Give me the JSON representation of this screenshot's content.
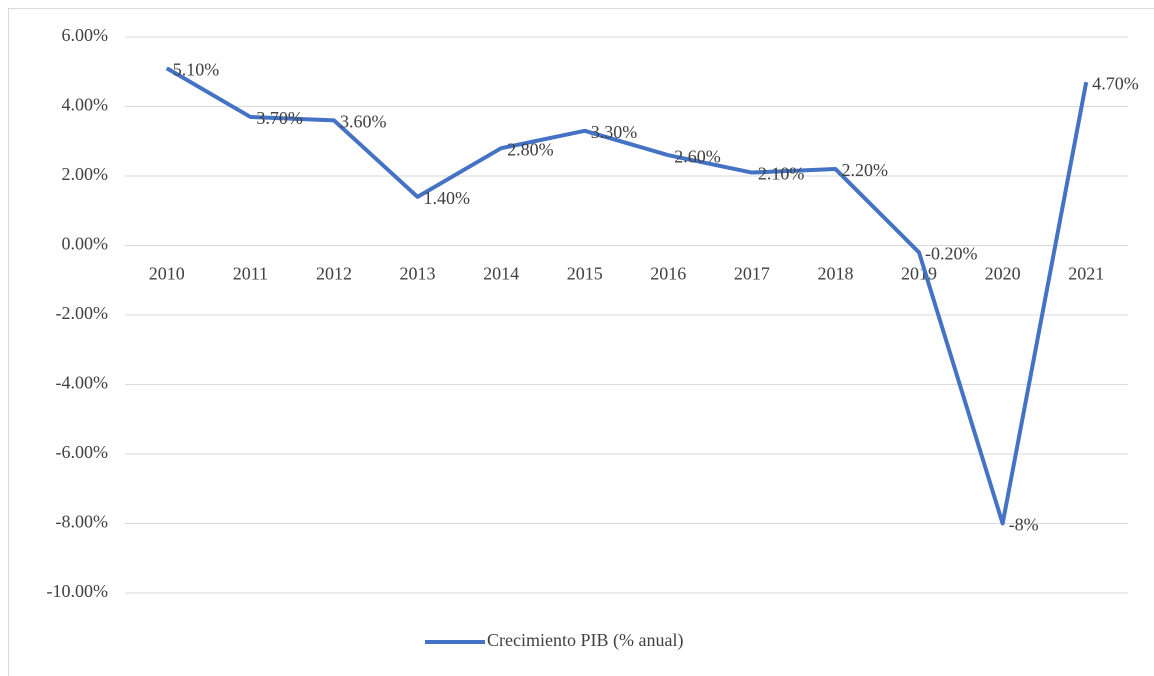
{
  "chart_data": {
    "type": "line",
    "categories": [
      "2010",
      "2011",
      "2012",
      "2013",
      "2014",
      "2015",
      "2016",
      "2017",
      "2018",
      "2019",
      "2020",
      "2021"
    ],
    "series": [
      {
        "name": "Crecimiento PIB (% anual)",
        "color": "#4472c4",
        "values": [
          5.1,
          3.7,
          3.6,
          1.4,
          2.8,
          3.3,
          2.6,
          2.1,
          2.2,
          -0.2,
          -8,
          4.7
        ],
        "value_labels": [
          "5.10%",
          "3.70%",
          "3.60%",
          "1.40%",
          "2.80%",
          "3.30%",
          "2.60%",
          "2.10%",
          "2.20%",
          "-0.20%",
          "-8%",
          "4.70%"
        ]
      }
    ],
    "ylim": [
      -10,
      6
    ],
    "yticks": [
      {
        "value": -10,
        "label": "-10.00%"
      },
      {
        "value": -8,
        "label": "-8.00%"
      },
      {
        "value": -6,
        "label": "-6.00%"
      },
      {
        "value": -4,
        "label": "-4.00%"
      },
      {
        "value": -2,
        "label": "-2.00%"
      },
      {
        "value": 0,
        "label": "0.00%"
      },
      {
        "value": 2,
        "label": "2.00%"
      },
      {
        "value": 4,
        "label": "4.00%"
      },
      {
        "value": 6,
        "label": "6.00%"
      }
    ],
    "grid": true,
    "legend": "bottom"
  }
}
